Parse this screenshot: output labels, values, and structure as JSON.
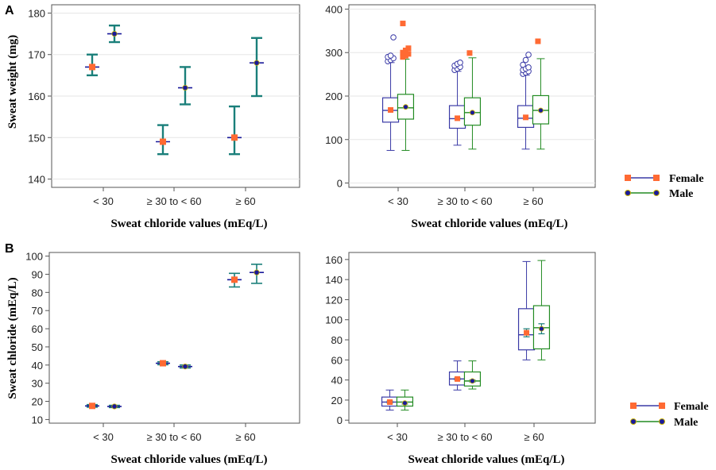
{
  "colors": {
    "errorbar": "#1a7f7a",
    "female_marker": "#ff6a33",
    "male_marker": "#1a1a9a",
    "female_box": "#3a3aa6",
    "male_box": "#228b22",
    "grid": "#e6e6e6",
    "frame": "#555555"
  },
  "legend": {
    "female": "Female",
    "male": "Male"
  },
  "chart_data": [
    {
      "id": "A-left",
      "panel_label": "A",
      "type": "errorbar",
      "title": "",
      "ylabel": "Sweat weight (mg)",
      "xlabel": "Sweat chloride values (mEq/L)",
      "categories": [
        "< 30",
        "≥ 30 to < 60",
        "≥ 60"
      ],
      "ylim": [
        138,
        182
      ],
      "yticks": [
        140,
        150,
        160,
        170,
        180
      ],
      "grid": true,
      "series": [
        {
          "name": "Female",
          "mean": [
            167,
            149,
            150
          ],
          "low": [
            165,
            146,
            146
          ],
          "high": [
            170,
            153,
            157.5
          ]
        },
        {
          "name": "Male",
          "mean": [
            175,
            162,
            168
          ],
          "low": [
            173,
            158,
            160
          ],
          "high": [
            177,
            167,
            174
          ]
        }
      ]
    },
    {
      "id": "A-right",
      "type": "boxplot",
      "title": "",
      "ylabel": "",
      "xlabel": "Sweat chloride values (mEq/L)",
      "categories": [
        "< 30",
        "≥ 30 to < 60",
        "≥ 60"
      ],
      "ylim": [
        -10,
        410
      ],
      "yticks": [
        0,
        100,
        200,
        300,
        400
      ],
      "grid": true,
      "legend_position": "right",
      "series": [
        {
          "name": "Female",
          "boxes": [
            {
              "whisker_low": 75,
              "q1": 140,
              "median": 167,
              "q3": 196,
              "whisker_high": 277,
              "mean": 168,
              "outliers": [
                280,
                283,
                287,
                290,
                293,
                335
              ]
            },
            {
              "whisker_low": 87,
              "q1": 126,
              "median": 148,
              "q3": 178,
              "whisker_high": 257,
              "mean": 149,
              "outliers": [
                260,
                263,
                267,
                270,
                274,
                277
              ]
            },
            {
              "whisker_low": 78,
              "q1": 128,
              "median": 149,
              "q3": 178,
              "whisker_high": 248,
              "mean": 151,
              "outliers": [
                251,
                254,
                257,
                260,
                263,
                266,
                272,
                283,
                295
              ]
            }
          ]
        },
        {
          "name": "Male",
          "boxes": [
            {
              "whisker_low": 75,
              "q1": 147,
              "median": 173,
              "q3": 204,
              "whisker_high": 285,
              "mean": 175,
              "outliers": [
                290,
                293,
                297,
                300,
                305,
                310,
                367
              ]
            },
            {
              "whisker_low": 78,
              "q1": 133,
              "median": 162,
              "q3": 196,
              "whisker_high": 288,
              "mean": 162,
              "outliers": [
                299
              ]
            },
            {
              "whisker_low": 78,
              "q1": 136,
              "median": 167,
              "q3": 201,
              "whisker_high": 286,
              "mean": 167,
              "outliers": [
                326
              ]
            }
          ]
        }
      ]
    },
    {
      "id": "B-left",
      "panel_label": "B",
      "type": "errorbar",
      "title": "",
      "ylabel": "Sweat chloride (mEq/L)",
      "xlabel": "Sweat chloride values (mEq/L)",
      "categories": [
        "< 30",
        "≥ 30 to < 60",
        "≥ 60"
      ],
      "ylim": [
        8,
        102
      ],
      "yticks": [
        10,
        20,
        30,
        40,
        50,
        60,
        70,
        80,
        90,
        100
      ],
      "grid": false,
      "series": [
        {
          "name": "Female",
          "mean": [
            17.5,
            41,
            87
          ],
          "low": [
            16.8,
            40.2,
            83
          ],
          "high": [
            18.2,
            41.8,
            90.5
          ]
        },
        {
          "name": "Male",
          "mean": [
            17.2,
            39.2,
            91
          ],
          "low": [
            16.6,
            38.4,
            85
          ],
          "high": [
            17.8,
            40,
            95.5
          ]
        }
      ]
    },
    {
      "id": "B-right",
      "type": "boxplot",
      "title": "",
      "ylabel": "",
      "xlabel": "Sweat chloride values (mEq/L)",
      "categories": [
        "< 30",
        "≥ 30 to < 60",
        "≥ 60"
      ],
      "ylim": [
        -3,
        167
      ],
      "yticks": [
        0,
        20,
        40,
        60,
        80,
        100,
        120,
        140,
        160
      ],
      "grid": false,
      "legend_position": "right",
      "series": [
        {
          "name": "Female",
          "boxes": [
            {
              "whisker_low": 10,
              "q1": 14,
              "median": 18,
              "q3": 23,
              "whisker_high": 30,
              "mean": 18,
              "mean_low": 17,
              "mean_high": 19
            },
            {
              "whisker_low": 30,
              "q1": 35,
              "median": 41,
              "q3": 48,
              "whisker_high": 59,
              "mean": 41,
              "mean_low": 40,
              "mean_high": 42
            },
            {
              "whisker_low": 60,
              "q1": 70,
              "median": 85,
              "q3": 111,
              "whisker_high": 158,
              "mean": 87,
              "mean_low": 83,
              "mean_high": 91
            }
          ]
        },
        {
          "name": "Male",
          "boxes": [
            {
              "whisker_low": 10,
              "q1": 14,
              "median": 18,
              "q3": 23,
              "whisker_high": 30,
              "mean": 17,
              "mean_low": 16,
              "mean_high": 18
            },
            {
              "whisker_low": 31,
              "q1": 34,
              "median": 39,
              "q3": 48,
              "whisker_high": 59,
              "mean": 39,
              "mean_low": 38,
              "mean_high": 40
            },
            {
              "whisker_low": 60,
              "q1": 71,
              "median": 92,
              "q3": 114,
              "whisker_high": 159,
              "mean": 91,
              "mean_low": 86,
              "mean_high": 96
            }
          ]
        }
      ]
    }
  ]
}
